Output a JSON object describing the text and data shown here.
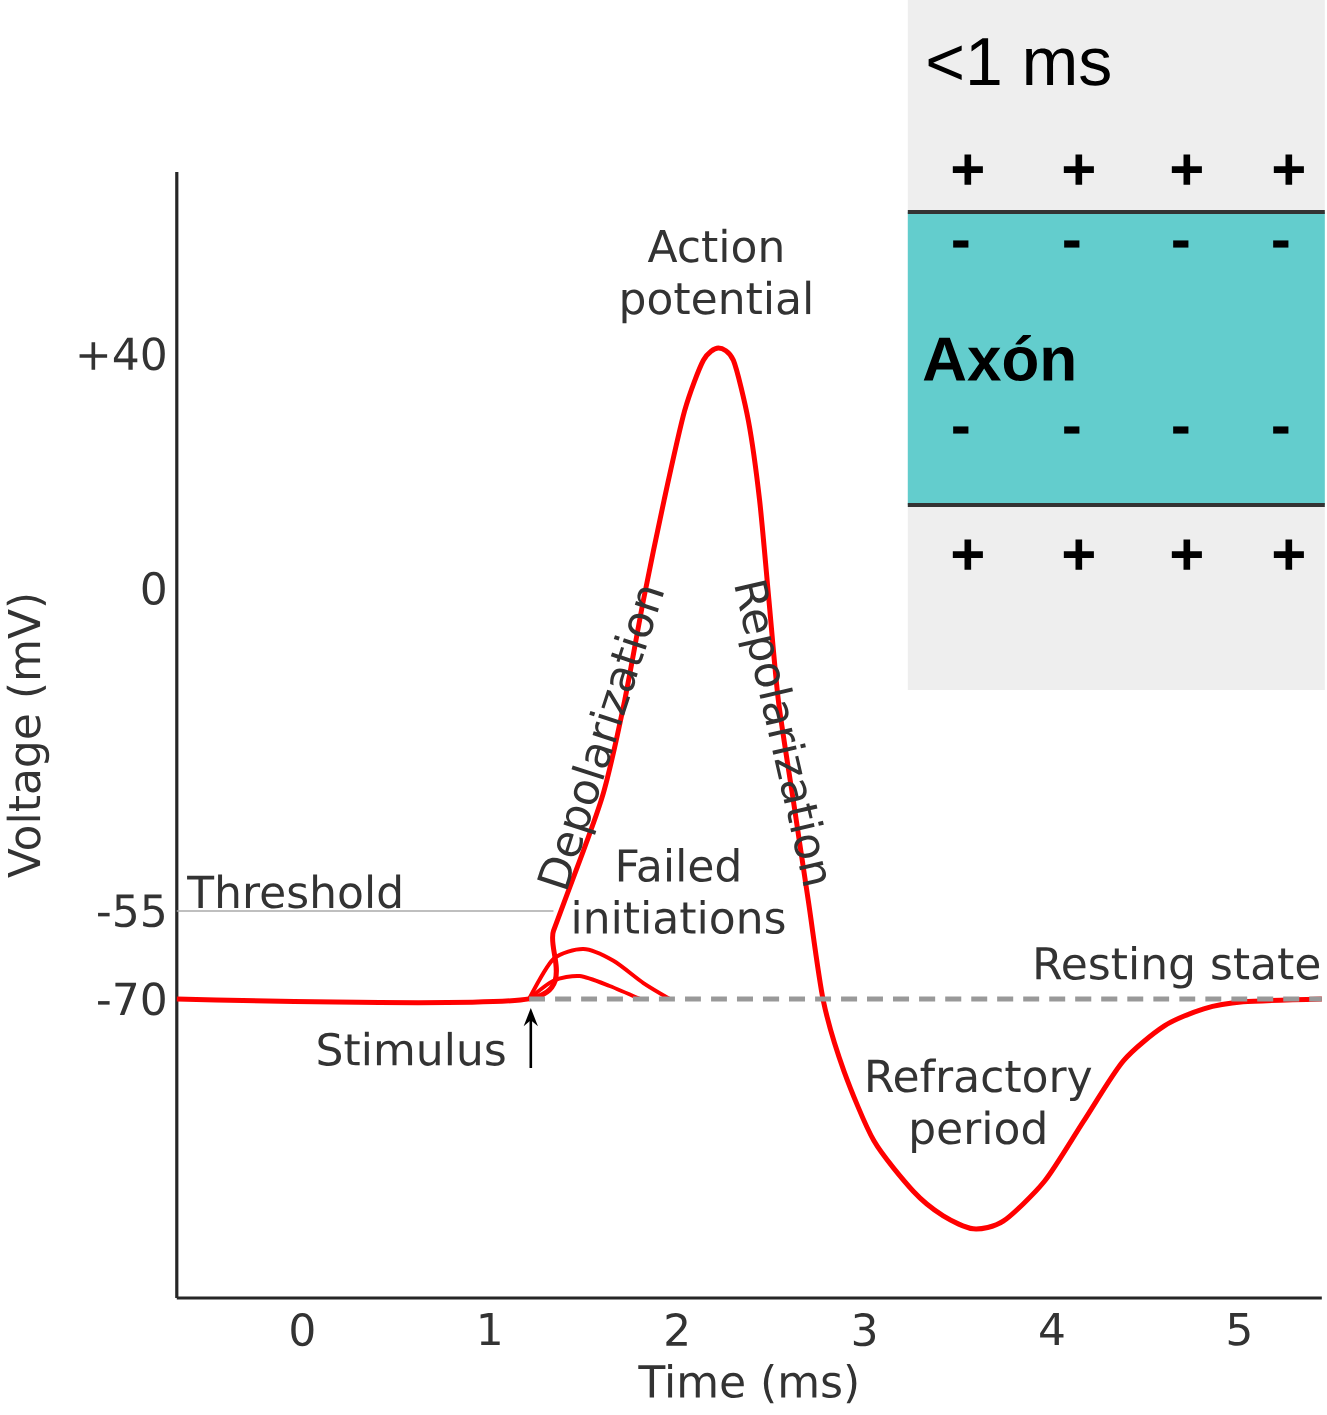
{
  "chart_data": [
    {
      "type": "line",
      "xlabel": "Time (ms)",
      "ylabel": "Voltage (mV)",
      "xlim": [
        -0.67,
        5.44
      ],
      "ylim": [
        -121,
        71
      ],
      "xticks": [
        0,
        1,
        2,
        3,
        4,
        5
      ],
      "yticks": [
        {
          "value": 40,
          "label": "+40"
        },
        0,
        -55,
        -70
      ],
      "marker": "none",
      "series": [
        {
          "color": "#ff0000",
          "x": [
            -0.67,
            1.21,
            1.34,
            1.5,
            1.61,
            1.72,
            1.82,
            1.93,
            2.04,
            2.14,
            2.22,
            2.3,
            2.38,
            2.44,
            2.49,
            2.54,
            2.62,
            2.7,
            2.78,
            2.89,
            3.05,
            3.26,
            3.42,
            3.58,
            3.74,
            3.96,
            4.17,
            4.38,
            4.6,
            4.81,
            5.02,
            5.44
          ],
          "values": [
            -70,
            -70,
            -58.4,
            -44.7,
            -34.5,
            -19.1,
            -2,
            15,
            30.3,
            38.9,
            41,
            38.9,
            28.6,
            15,
            -2.1,
            -19.1,
            -36.2,
            -53.3,
            -70.3,
            -82.3,
            -94.2,
            -102.8,
            -107,
            -109.2,
            -107.9,
            -101.1,
            -90.8,
            -80.6,
            -74.6,
            -71.7,
            -70.5,
            -70
          ]
        },
        {
          "color": "#ff0000",
          "x": [
            1.21,
            1.34,
            1.5,
            1.66,
            1.82,
            1.96
          ],
          "values": [
            -70,
            -63.2,
            -61.5,
            -63.5,
            -67.3,
            -70
          ]
        },
        {
          "color": "#ff0000",
          "x": [
            1.21,
            1.34,
            1.48,
            1.64,
            1.8
          ],
          "values": [
            -70,
            -66.9,
            -66.1,
            -67.8,
            -70
          ]
        },
        {
          "name": "Threshold",
          "color": "#aaaaaa",
          "x": [
            -0.67,
            1.34
          ],
          "values": [
            -55,
            -55
          ]
        },
        {
          "color": "#999999",
          "line_style": "dashed",
          "x": [
            1.21,
            5.44
          ],
          "values": [
            -70,
            -70
          ]
        }
      ],
      "annotations": [
        {
          "text": "Action potential",
          "x": 2.22,
          "y": 41
        },
        {
          "text": "Depolarization",
          "x": 1.72,
          "y": -19.1
        },
        {
          "text": "Repolarization",
          "x": 2.54,
          "y": -19.1
        },
        {
          "text": "Failed initiations",
          "x": 1.5,
          "y": -61.5
        },
        {
          "text": "Resting state",
          "x": 5.44,
          "y": -70
        },
        {
          "text": "Stimulus",
          "x": 1.21,
          "y": -70
        },
        {
          "text": "Refractory period",
          "x": 3.58,
          "y": -109.2
        }
      ]
    },
    {
      "type": "other",
      "annotations": [
        "<1 ms",
        "Axón",
        "+",
        "+",
        "+",
        "+",
        "-",
        "-",
        "-",
        "-",
        "-",
        "-",
        "-",
        "-",
        "+",
        "+",
        "+",
        "+"
      ]
    }
  ]
}
